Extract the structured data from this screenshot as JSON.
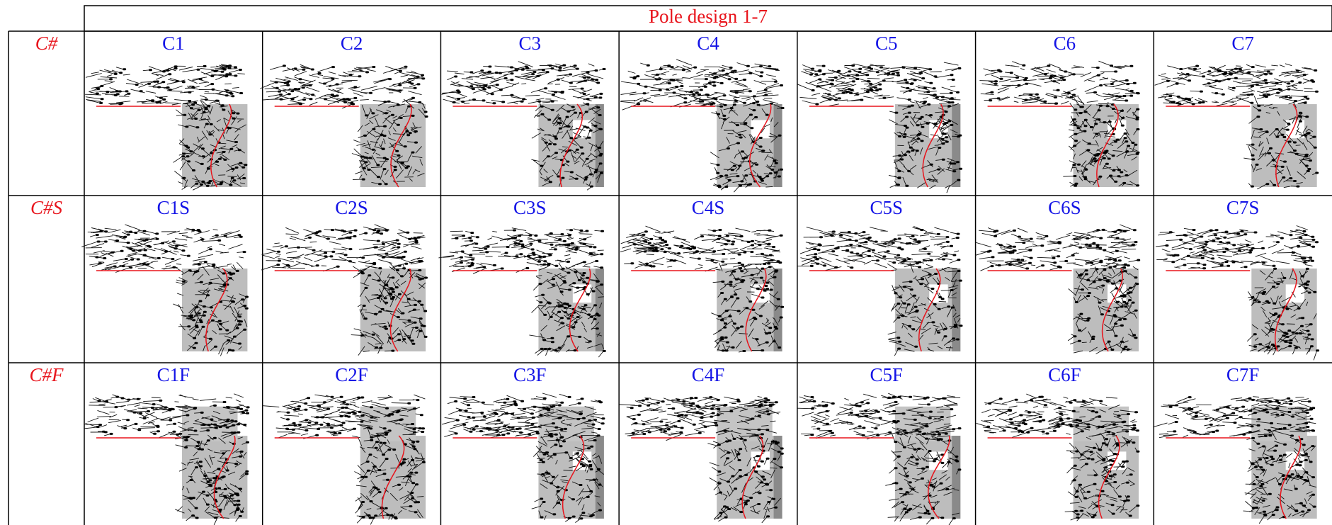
{
  "header": {
    "title": "Pole design 1-7"
  },
  "rows": [
    {
      "label": "C#",
      "cells": [
        "C1",
        "C2",
        "C3",
        "C4",
        "C5",
        "C6",
        "C7"
      ]
    },
    {
      "label": "C#S",
      "cells": [
        "C1S",
        "C2S",
        "C3S",
        "C4S",
        "C5S",
        "C6S",
        "C7S"
      ]
    },
    {
      "label": "C#F",
      "cells": [
        "C1F",
        "C2F",
        "C3F",
        "C4F",
        "C5F",
        "C6F",
        "C7F"
      ]
    }
  ]
}
